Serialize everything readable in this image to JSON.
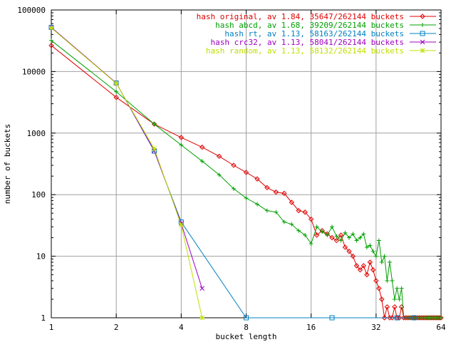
{
  "chart_data": {
    "type": "line",
    "xlabel": "bucket length",
    "ylabel": "number of buckets",
    "x_scale": "log2",
    "y_scale": "log10",
    "xlim": [
      1,
      64
    ],
    "ylim": [
      1,
      100000
    ],
    "x_ticks": [
      1,
      2,
      4,
      8,
      16,
      32,
      64
    ],
    "x_tick_labels": [
      "1",
      "2",
      "4",
      "8",
      "16",
      "32",
      "64"
    ],
    "y_ticks": [
      1,
      10,
      100,
      1000,
      10000,
      100000
    ],
    "y_tick_labels": [
      "1",
      "10",
      "100",
      "1000",
      "10000",
      "100000"
    ],
    "grid": true,
    "legend_position": "top-right",
    "series": [
      {
        "name": "hash original, av 1.84, 35647/262144 buckets",
        "color": "#e00000",
        "marker": "diamond",
        "x": [
          1,
          2,
          3,
          4,
          5,
          6,
          7,
          8,
          9,
          10,
          11,
          12,
          13,
          14,
          15,
          16,
          17,
          18,
          19,
          20,
          21,
          22,
          23,
          24,
          25,
          26,
          27,
          28,
          29,
          30,
          31,
          32,
          33,
          34,
          35,
          36,
          37,
          38,
          39,
          40,
          41,
          42,
          43,
          44,
          45,
          46,
          47,
          48,
          49,
          50,
          51,
          52,
          53,
          54,
          55,
          56,
          57,
          58,
          59,
          60,
          61,
          62,
          63,
          64
        ],
        "y": [
          26500,
          3800,
          1400,
          850,
          590,
          420,
          300,
          230,
          180,
          130,
          110,
          105,
          75,
          55,
          52,
          40,
          22,
          26,
          23,
          20,
          18,
          22,
          14,
          12,
          10,
          7,
          6,
          7,
          5,
          8,
          6,
          4,
          3,
          2,
          1,
          1.5,
          1,
          1,
          1.5,
          1,
          1,
          1.5,
          1,
          1,
          1,
          1,
          1,
          1,
          1,
          1,
          1,
          1,
          1,
          1,
          1,
          1,
          1,
          1,
          1,
          1,
          1,
          1,
          1,
          1
        ]
      },
      {
        "name": "hash abcd, av 1.68, 39209/262144 buckets",
        "color": "#00a000",
        "marker": "plus",
        "x": [
          1,
          2,
          3,
          4,
          5,
          6,
          7,
          8,
          9,
          10,
          11,
          12,
          13,
          14,
          15,
          16,
          17,
          18,
          19,
          20,
          21,
          22,
          23,
          24,
          25,
          26,
          27,
          28,
          29,
          30,
          31,
          32,
          33,
          34,
          35,
          36,
          37,
          38,
          39,
          40,
          41,
          42,
          43,
          44,
          45,
          46,
          47,
          48,
          49,
          50,
          51,
          52,
          53,
          54,
          55,
          56,
          57,
          58,
          59,
          60,
          61,
          62,
          63,
          64
        ],
        "y": [
          32000,
          4700,
          1400,
          640,
          350,
          210,
          125,
          88,
          70,
          55,
          52,
          36,
          33,
          26,
          22,
          16,
          30,
          25,
          22,
          30,
          21,
          18,
          24,
          20,
          23,
          18,
          20,
          23,
          14,
          15,
          12,
          10,
          18,
          8,
          10,
          4,
          8,
          4,
          2,
          3,
          2,
          3,
          1,
          1,
          1,
          1,
          1,
          1,
          1,
          1,
          1,
          1,
          1,
          1,
          1,
          1,
          1,
          1,
          1,
          1,
          1,
          1,
          1,
          1
        ]
      },
      {
        "name": "hash rt, av 1.13, 58163/262144 buckets",
        "color": "#0080c0",
        "marker": "square",
        "x": [
          1,
          2,
          3,
          4,
          8,
          20,
          40,
          48
        ],
        "y": [
          52000,
          6500,
          510,
          36,
          1,
          1,
          1,
          1
        ]
      },
      {
        "name": "hash crc32, av 1.13, 58041/262144 buckets",
        "color": "#a000c0",
        "marker": "x",
        "x": [
          1,
          2,
          3,
          4,
          5
        ],
        "y": [
          52000,
          6500,
          520,
          34,
          3
        ]
      },
      {
        "name": "hash random, av 1.13, 58132/262144 buckets",
        "color": "#c0e000",
        "marker": "star",
        "x": [
          1,
          2,
          3,
          4,
          5
        ],
        "y": [
          51000,
          6400,
          560,
          32,
          1
        ]
      }
    ]
  }
}
